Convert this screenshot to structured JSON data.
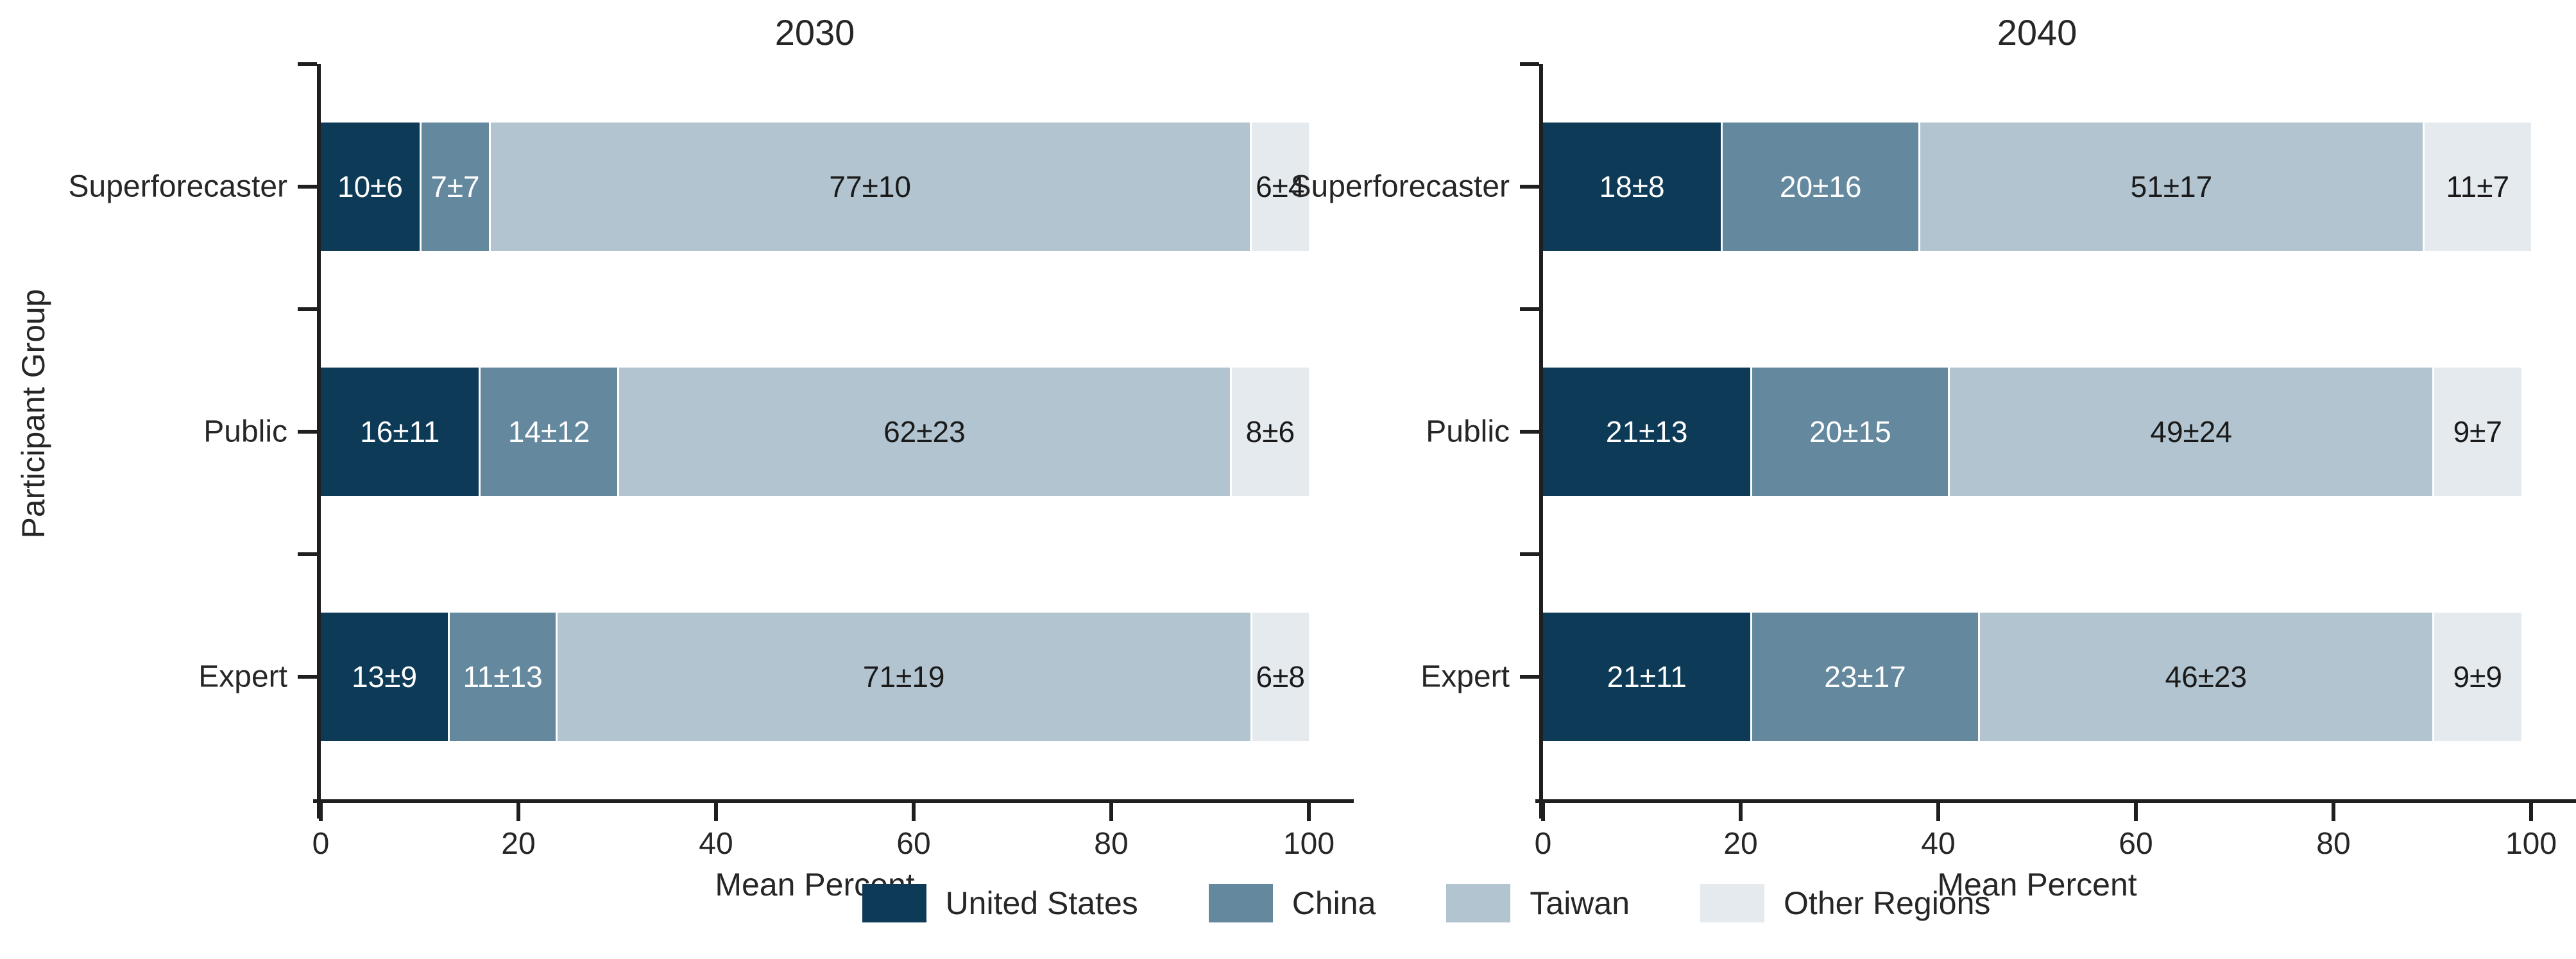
{
  "figure": {
    "background": "#ffffff",
    "ylabel": "Participant Group"
  },
  "colors": {
    "axis": "#1f1f1f",
    "text": "#262626",
    "label_on_dark": "#ffffff",
    "label_on_light": "#1a1a1a",
    "series": {
      "United States": "#0d3a56",
      "China": "#64889e",
      "Taiwan": "#b1c4cf",
      "Other Regions": "#e5eaef"
    }
  },
  "legend": {
    "position": "bottom-center",
    "items": [
      {
        "label": "United States",
        "color": "#0d3a56"
      },
      {
        "label": "China",
        "color": "#64889e"
      },
      {
        "label": "Taiwan",
        "color": "#b1c4cf"
      },
      {
        "label": "Other Regions",
        "color": "#e5eaef"
      }
    ]
  },
  "chart_data": [
    {
      "type": "bar",
      "orientation": "horizontal",
      "stacked": true,
      "title": "2030",
      "xlabel": "Mean Percent",
      "ylabel": "Participant Group",
      "xlim": [
        0,
        100
      ],
      "xticks": [
        0,
        20,
        40,
        60,
        80,
        100
      ],
      "grid": false,
      "categories": [
        "Superforecaster",
        "Public",
        "Expert"
      ],
      "series": [
        {
          "name": "United States",
          "values": [
            10,
            16,
            13
          ],
          "uncertainty": [
            6,
            11,
            9
          ],
          "labels": [
            "10±6",
            "16±11",
            "13±9"
          ],
          "label_color": "#ffffff"
        },
        {
          "name": "China",
          "values": [
            7,
            14,
            11
          ],
          "uncertainty": [
            7,
            12,
            13
          ],
          "labels": [
            "7±7",
            "14±12",
            "11±13"
          ],
          "label_color": "#ffffff"
        },
        {
          "name": "Taiwan",
          "values": [
            77,
            62,
            71
          ],
          "uncertainty": [
            10,
            23,
            19
          ],
          "labels": [
            "77±10",
            "62±23",
            "71±19"
          ],
          "label_color": "#1a1a1a"
        },
        {
          "name": "Other Regions",
          "values": [
            6,
            8,
            6
          ],
          "uncertainty": [
            4,
            6,
            8
          ],
          "labels": [
            "6±4",
            "8±6",
            "6±8"
          ],
          "label_color": "#1a1a1a"
        }
      ]
    },
    {
      "type": "bar",
      "orientation": "horizontal",
      "stacked": true,
      "title": "2040",
      "xlabel": "Mean Percent",
      "ylabel": "Participant Group",
      "xlim": [
        0,
        100
      ],
      "xticks": [
        0,
        20,
        40,
        60,
        80,
        100
      ],
      "grid": false,
      "categories": [
        "Superforecaster",
        "Public",
        "Expert"
      ],
      "series": [
        {
          "name": "United States",
          "values": [
            18,
            21,
            21
          ],
          "uncertainty": [
            8,
            13,
            11
          ],
          "labels": [
            "18±8",
            "21±13",
            "21±11"
          ],
          "label_color": "#ffffff"
        },
        {
          "name": "China",
          "values": [
            20,
            20,
            23
          ],
          "uncertainty": [
            16,
            15,
            17
          ],
          "labels": [
            "20±16",
            "20±15",
            "23±17"
          ],
          "label_color": "#ffffff"
        },
        {
          "name": "Taiwan",
          "values": [
            51,
            49,
            46
          ],
          "uncertainty": [
            17,
            24,
            23
          ],
          "labels": [
            "51±17",
            "49±24",
            "46±23"
          ],
          "label_color": "#1a1a1a"
        },
        {
          "name": "Other Regions",
          "values": [
            11,
            9,
            9
          ],
          "uncertainty": [
            7,
            7,
            9
          ],
          "labels": [
            "11±7",
            "9±7",
            "9±9"
          ],
          "label_color": "#1a1a1a"
        }
      ]
    }
  ]
}
